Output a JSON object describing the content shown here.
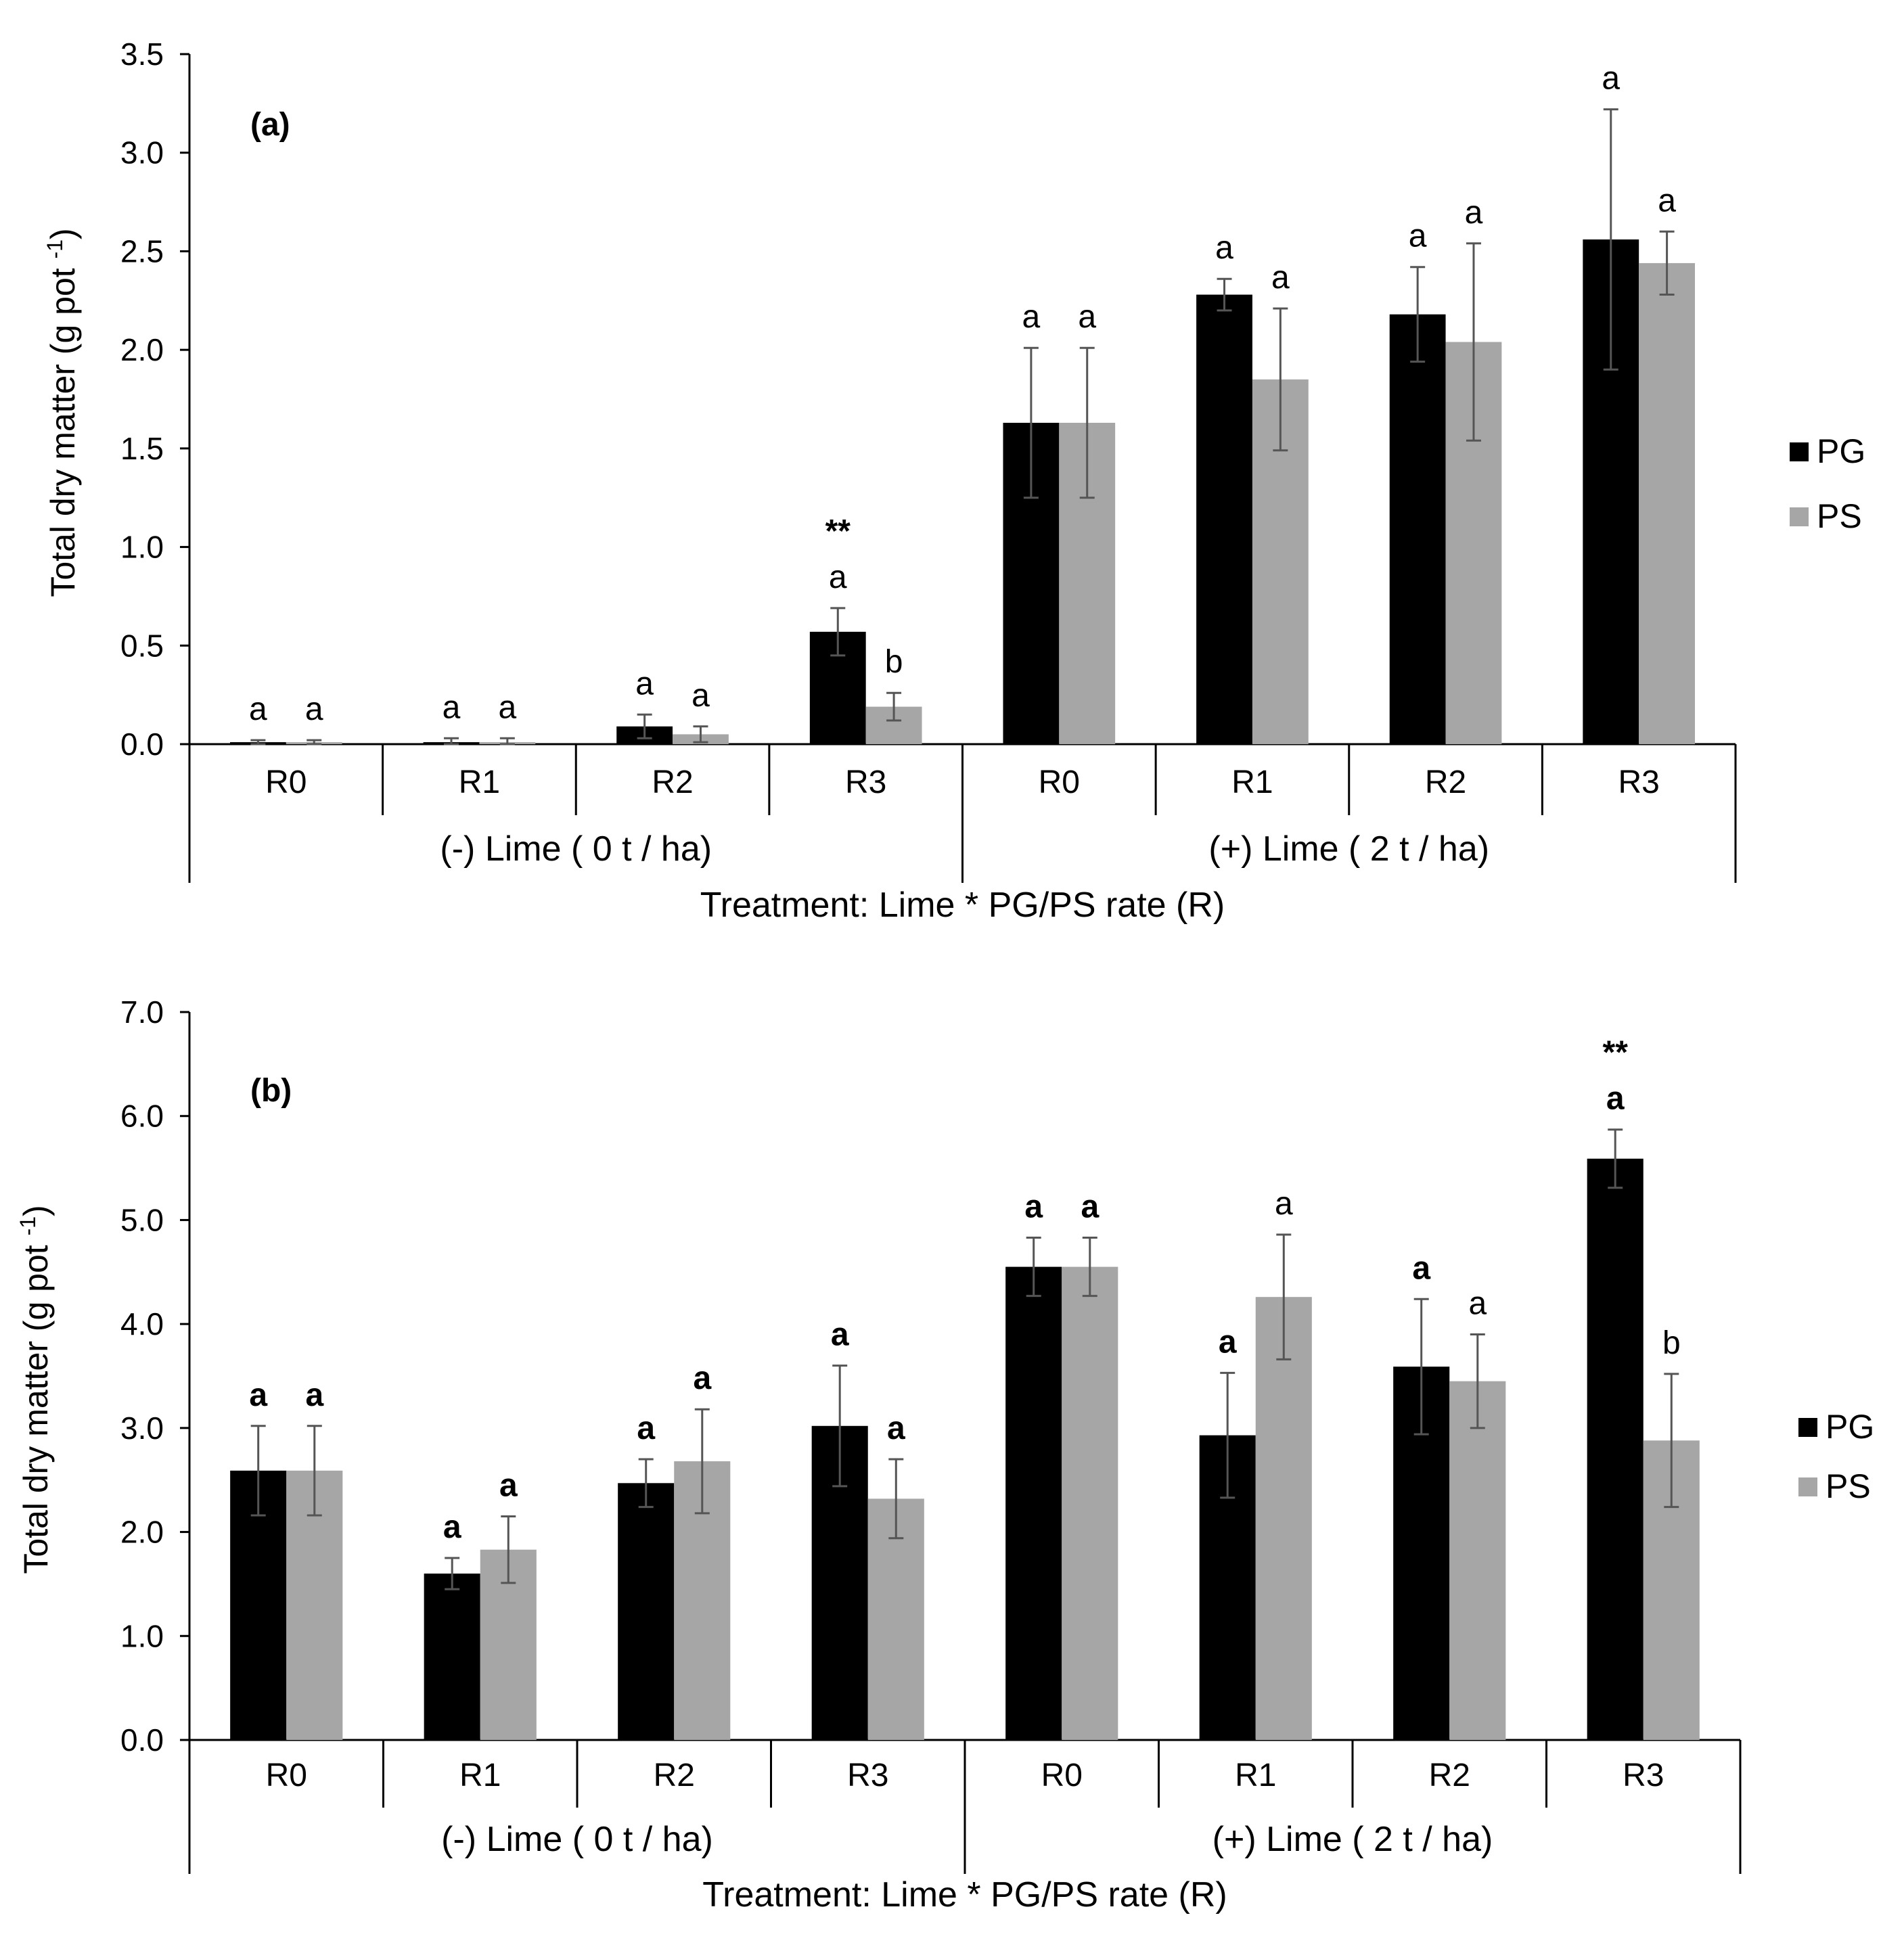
{
  "chart_data": [
    {
      "type": "bar",
      "panel_label": "(a)",
      "ylabel": "Total dry matter (g pot",
      "ylabel_sup": "-1",
      "ylabel_close": ")",
      "ylim": [
        0,
        3.5
      ],
      "yticks": [
        "0.0",
        "0.5",
        "1.0",
        "1.5",
        "2.0",
        "2.5",
        "3.0",
        "3.5"
      ],
      "yticks_values": [
        0,
        0.5,
        1.0,
        1.5,
        2.0,
        2.5,
        3.0,
        3.5
      ],
      "categories": [
        "R0",
        "R1",
        "R2",
        "R3",
        "R0",
        "R1",
        "R2",
        "R3"
      ],
      "groups": [
        "(-) Lime ( 0 t / ha)",
        "(+) Lime ( 2 t / ha)"
      ],
      "xlabel": "Treatment:  Lime * PG/PS rate (R)",
      "legend": [
        "PG",
        "PS"
      ],
      "series": [
        {
          "name": "PG",
          "color": "#000000",
          "values": [
            0.01,
            0.01,
            0.09,
            0.57,
            1.63,
            2.28,
            2.18,
            2.56
          ],
          "errors": [
            0.01,
            0.02,
            0.06,
            0.12,
            0.38,
            0.08,
            0.24,
            0.66
          ],
          "letters": [
            "a",
            "a",
            "a",
            "a",
            "a",
            "a",
            "a",
            "a"
          ],
          "sig": [
            "",
            "",
            "",
            "**",
            "",
            "",
            "",
            ""
          ]
        },
        {
          "name": "PS",
          "color": "#a6a6a6",
          "values": [
            0.01,
            0.01,
            0.05,
            0.19,
            1.63,
            1.85,
            2.04,
            2.44
          ],
          "errors": [
            0.01,
            0.02,
            0.04,
            0.07,
            0.38,
            0.36,
            0.5,
            0.16
          ],
          "letters": [
            "a",
            "a",
            "a",
            "b",
            "a",
            "a",
            "a",
            "a"
          ],
          "sig": [
            "",
            "",
            "",
            "",
            "",
            "",
            "",
            ""
          ]
        }
      ]
    },
    {
      "type": "bar",
      "panel_label": "(b)",
      "ylabel": "Total dry matter (g pot",
      "ylabel_sup": "-1",
      "ylabel_close": ")",
      "ylim": [
        0,
        7.0
      ],
      "yticks": [
        "0.0",
        "1.0",
        "2.0",
        "3.0",
        "4.0",
        "5.0",
        "6.0",
        "7.0"
      ],
      "yticks_values": [
        0,
        1,
        2,
        3,
        4,
        5,
        6,
        7
      ],
      "categories": [
        "R0",
        "R1",
        "R2",
        "R3",
        "R0",
        "R1",
        "R2",
        "R3"
      ],
      "groups": [
        "(-) Lime ( 0 t / ha)",
        "(+) Lime ( 2 t / ha)"
      ],
      "xlabel": "Treatment:  Lime * PG/PS rate (R)",
      "legend": [
        "PG",
        "PS"
      ],
      "series": [
        {
          "name": "PG",
          "color": "#000000",
          "values": [
            2.59,
            1.6,
            2.47,
            3.02,
            4.55,
            2.93,
            3.59,
            5.59
          ],
          "errors": [
            0.43,
            0.15,
            0.23,
            0.58,
            0.28,
            0.6,
            0.65,
            0.28
          ],
          "letters": [
            "a",
            "a",
            "a",
            "a",
            "a",
            "a",
            "a",
            "a"
          ],
          "letters_bold": [
            true,
            true,
            true,
            true,
            true,
            true,
            true,
            true
          ],
          "sig": [
            "",
            "",
            "",
            "",
            "",
            "",
            "",
            "**"
          ]
        },
        {
          "name": "PS",
          "color": "#a6a6a6",
          "values": [
            2.59,
            1.83,
            2.68,
            2.32,
            4.55,
            4.26,
            3.45,
            2.88
          ],
          "errors": [
            0.43,
            0.32,
            0.5,
            0.38,
            0.28,
            0.6,
            0.45,
            0.64
          ],
          "letters": [
            "a",
            "a",
            "a",
            "a",
            "a",
            "a",
            "a",
            "b"
          ],
          "letters_bold": [
            true,
            true,
            true,
            true,
            true,
            false,
            false,
            false
          ],
          "sig": [
            "",
            "",
            "",
            "",
            "",
            "",
            "",
            ""
          ]
        }
      ]
    }
  ]
}
